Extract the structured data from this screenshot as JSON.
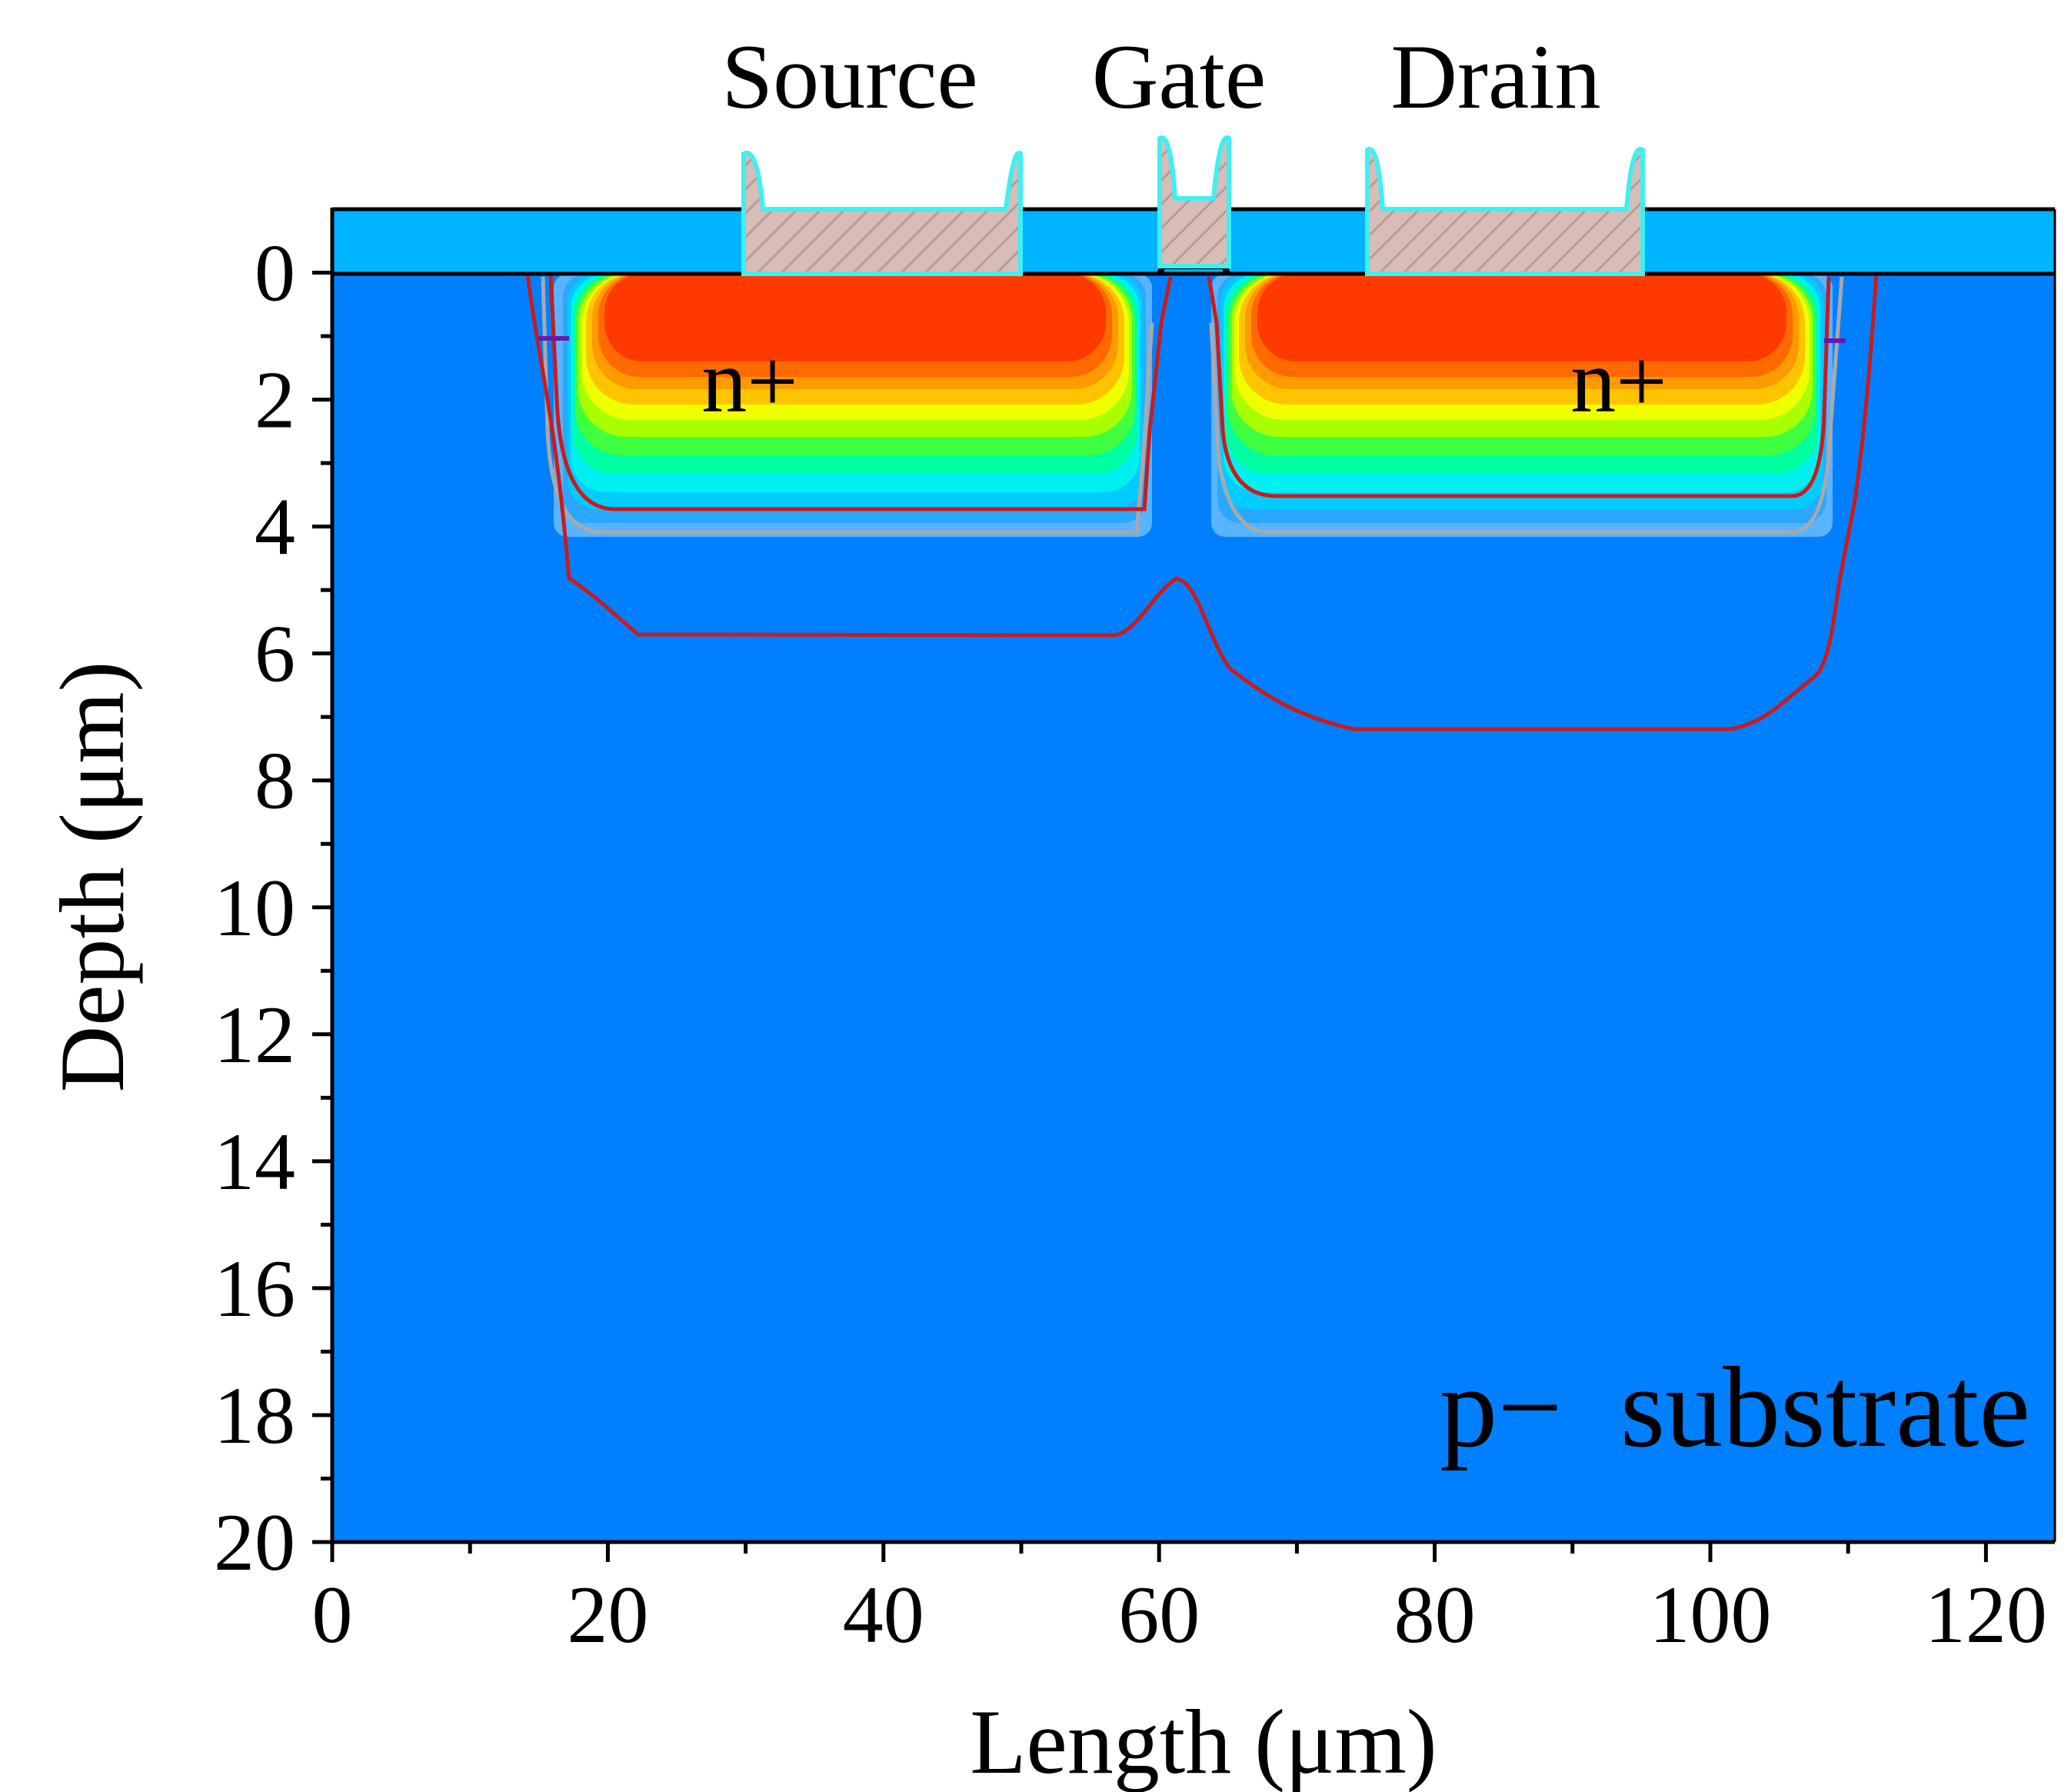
{
  "figure_type": "TCAD doping profile cross-section",
  "chart_data": {
    "type": "heatmap",
    "x_axis": {
      "title": "Length (μm)",
      "range": [
        0,
        125
      ],
      "major_ticks": [
        0,
        20,
        40,
        60,
        80,
        100,
        120
      ],
      "tick_labels": [
        "0",
        "20",
        "40",
        "60",
        "80",
        "100",
        "120"
      ],
      "minor_step": 10
    },
    "y_axis": {
      "title": "Depth (μm)",
      "range": [
        -1,
        20
      ],
      "inverted": true,
      "major_ticks": [
        0,
        2,
        4,
        6,
        8,
        10,
        12,
        14,
        16,
        18,
        20
      ],
      "tick_labels": [
        "0",
        "2",
        "4",
        "6",
        "8",
        "10",
        "12",
        "14",
        "16",
        "18",
        "20"
      ],
      "minor_step": 1
    },
    "electrodes": [
      {
        "name": "Source",
        "x_range": [
          30,
          50
        ]
      },
      {
        "name": "Gate",
        "x_range": [
          60,
          65
        ]
      },
      {
        "name": "Drain",
        "x_range": [
          75,
          95
        ]
      }
    ],
    "doped_regions": [
      {
        "label": "n+",
        "x_range": [
          17,
          61.5
        ],
        "depth": 4.2
      },
      {
        "label": "n+",
        "x_range": [
          63.5,
          108
        ],
        "depth": 4.2
      }
    ],
    "substrate": {
      "label": "p−  substrate"
    },
    "colors": {
      "substrate": "#0080ff",
      "oxide": "#00b4ff",
      "electrode_fill": "#d8bcb8",
      "electrode_edge": "#3ff0f0",
      "junction_line": "#cc1a1a",
      "doping_gradient": [
        "#ff3a00",
        "#ff6a00",
        "#ff9a00",
        "#ffc400",
        "#f0ff00",
        "#a8ff00",
        "#40ff40",
        "#00ffa0",
        "#00f0f0",
        "#00ccff",
        "#2aa8ff"
      ]
    }
  }
}
